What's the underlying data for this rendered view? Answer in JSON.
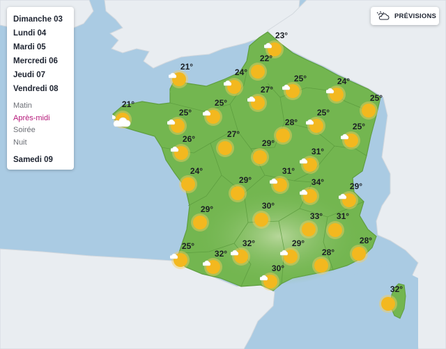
{
  "days": [
    {
      "label": "Dimanche 03"
    },
    {
      "label": "Lundi 04"
    },
    {
      "label": "Mardi 05"
    },
    {
      "label": "Mercredi 06"
    },
    {
      "label": "Jeudi 07"
    },
    {
      "label": "Vendredi 08"
    }
  ],
  "periods": [
    {
      "label": "Matin",
      "active": false
    },
    {
      "label": "Après-midi",
      "active": true
    },
    {
      "label": "Soirée",
      "active": false
    },
    {
      "label": "Nuit",
      "active": false
    }
  ],
  "next_day": {
    "label": "Samedi 09"
  },
  "forecast_button": {
    "label": "PRÉVISIONS",
    "icon": "cloud-sun-icon"
  },
  "colors": {
    "sea": "#aacbe3",
    "france": "#73b650",
    "france_south": "#8fc46e",
    "neighbors": "#e9edf1",
    "accent": "#b5187a",
    "sun": "#f3b81f"
  },
  "cities": [
    {
      "temp": "23°",
      "icon": "partly-cloudy"
    },
    {
      "temp": "22°",
      "icon": "sunny"
    },
    {
      "temp": "24°",
      "icon": "partly-cloudy"
    },
    {
      "temp": "21°",
      "icon": "partly-cloudy"
    },
    {
      "temp": "27°",
      "icon": "partly-cloudy"
    },
    {
      "temp": "25°",
      "icon": "partly-cloudy"
    },
    {
      "temp": "24°",
      "icon": "partly-cloudy"
    },
    {
      "temp": "25°",
      "icon": "sunny"
    },
    {
      "temp": "21°",
      "icon": "cloudy-sun"
    },
    {
      "temp": "25°",
      "icon": "partly-cloudy"
    },
    {
      "temp": "25°",
      "icon": "partly-cloudy"
    },
    {
      "temp": "28°",
      "icon": "sunny"
    },
    {
      "temp": "25°",
      "icon": "partly-cloudy"
    },
    {
      "temp": "25°",
      "icon": "partly-cloudy"
    },
    {
      "temp": "27°",
      "icon": "sunny"
    },
    {
      "temp": "26°",
      "icon": "partly-cloudy"
    },
    {
      "temp": "29°",
      "icon": "sunny"
    },
    {
      "temp": "31°",
      "icon": "partly-cloudy"
    },
    {
      "temp": "24°",
      "icon": "sunny"
    },
    {
      "temp": "31°",
      "icon": "partly-cloudy"
    },
    {
      "temp": "29°",
      "icon": "sunny"
    },
    {
      "temp": "34°",
      "icon": "partly-cloudy"
    },
    {
      "temp": "29°",
      "icon": "partly-cloudy"
    },
    {
      "temp": "29°",
      "icon": "sunny"
    },
    {
      "temp": "30°",
      "icon": "sunny"
    },
    {
      "temp": "33°",
      "icon": "sunny"
    },
    {
      "temp": "31°",
      "icon": "sunny"
    },
    {
      "temp": "25°",
      "icon": "partly-cloudy"
    },
    {
      "temp": "32°",
      "icon": "partly-cloudy"
    },
    {
      "temp": "32°",
      "icon": "partly-cloudy"
    },
    {
      "temp": "29°",
      "icon": "partly-cloudy"
    },
    {
      "temp": "28°",
      "icon": "sunny"
    },
    {
      "temp": "28°",
      "icon": "sunny"
    },
    {
      "temp": "30°",
      "icon": "partly-cloudy"
    },
    {
      "temp": "32°",
      "icon": "sunny"
    }
  ]
}
